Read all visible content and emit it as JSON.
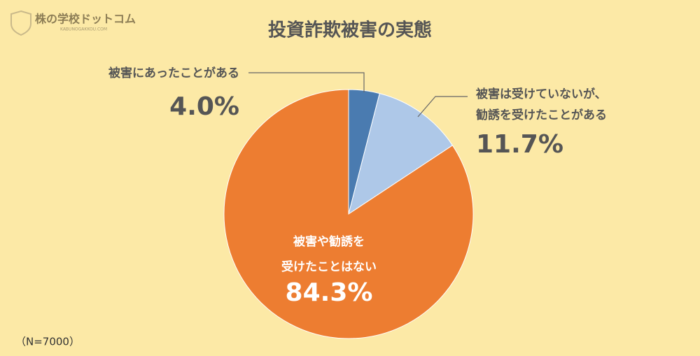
{
  "logo": {
    "name": "株の学校ドットコム",
    "url": "KABUNOGAKKOU.COM"
  },
  "chart_data": {
    "type": "pie",
    "title": "投資詐欺被害の実態",
    "categories": [
      "被害にあったことがある",
      "被害は受けていないが、\n勧誘を受けたことがある",
      "被害や勧誘を\n受けたことはない"
    ],
    "values": [
      4.0,
      11.7,
      84.3
    ],
    "value_labels": [
      "4.0%",
      "11.7%",
      "84.3%"
    ],
    "colors": [
      "#4a7bb0",
      "#aec8e8",
      "#ed7d31"
    ],
    "annotation": "（N=7000）"
  }
}
